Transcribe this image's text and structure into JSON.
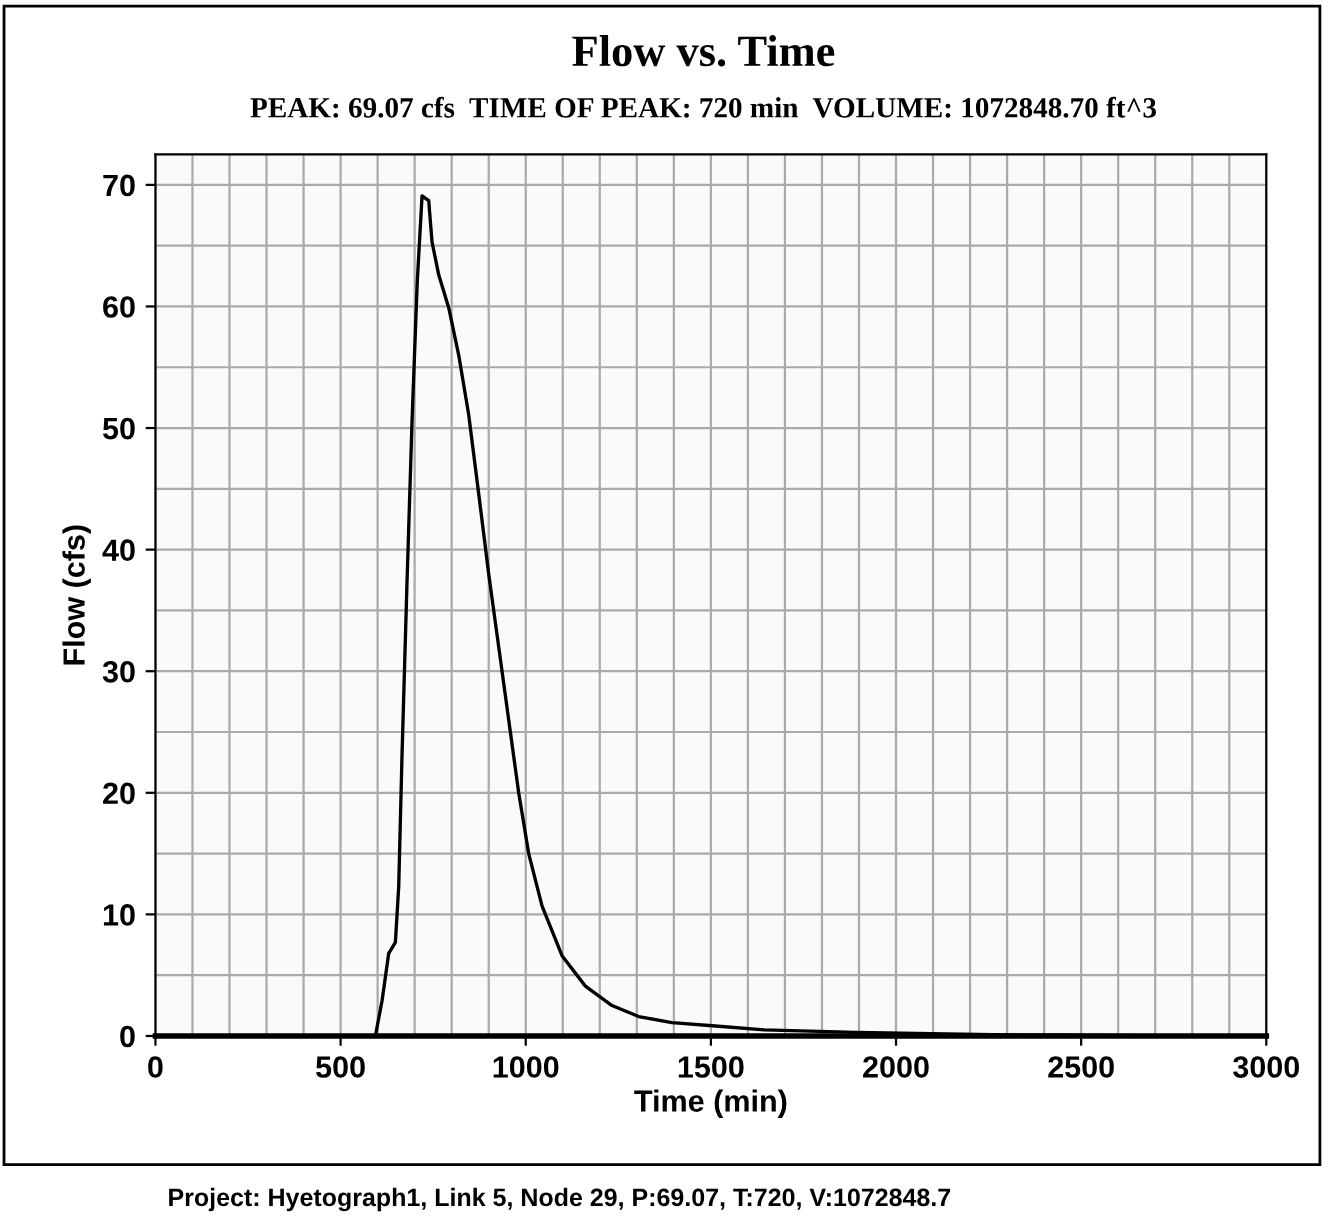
{
  "chart_data": {
    "type": "line",
    "title": "Flow vs. Time",
    "subtitle": "PEAK: 69.07 cfs  TIME OF PEAK: 720 min  VOLUME: 1072848.70 ft^3",
    "xlabel": "Time (min)",
    "ylabel": "Flow (cfs)",
    "annotations": [
      "Project: Hyetograph1, Link 5, Node 29, P:69.07, T:720, V:1072848.7"
    ],
    "series": [
      {
        "color": "#000000",
        "x": [
          0,
          594,
          612,
          630,
          648,
          657,
          666,
          679,
          693,
          707,
          720,
          738,
          747,
          765,
          792,
          819,
          846,
          873,
          900,
          927,
          954,
          981,
          1008,
          1044,
          1098,
          1161,
          1233,
          1305,
          1395,
          1521,
          1644,
          1891,
          2261,
          2880
        ],
        "values": [
          0,
          0,
          2.9,
          6.8,
          7.7,
          12.3,
          23.2,
          36.9,
          50.6,
          62,
          69.1,
          68.7,
          65.3,
          62.6,
          59.9,
          56,
          51.1,
          44.6,
          38,
          32,
          26,
          20,
          15,
          10.7,
          6.6,
          4.1,
          2.5,
          1.6,
          1.1,
          0.8,
          0.5,
          0.3,
          0.1,
          0
        ]
      }
    ],
    "xlim": [
      0,
      3000
    ],
    "ylim": [
      0,
      72.5
    ],
    "xticks": [
      0,
      500,
      1000,
      1500,
      2000,
      2500,
      3000
    ],
    "yticks": [
      0,
      10,
      20,
      30,
      40,
      50,
      60,
      70
    ],
    "grid": true,
    "legend": false,
    "marker": "none",
    "line_style": "solid"
  }
}
